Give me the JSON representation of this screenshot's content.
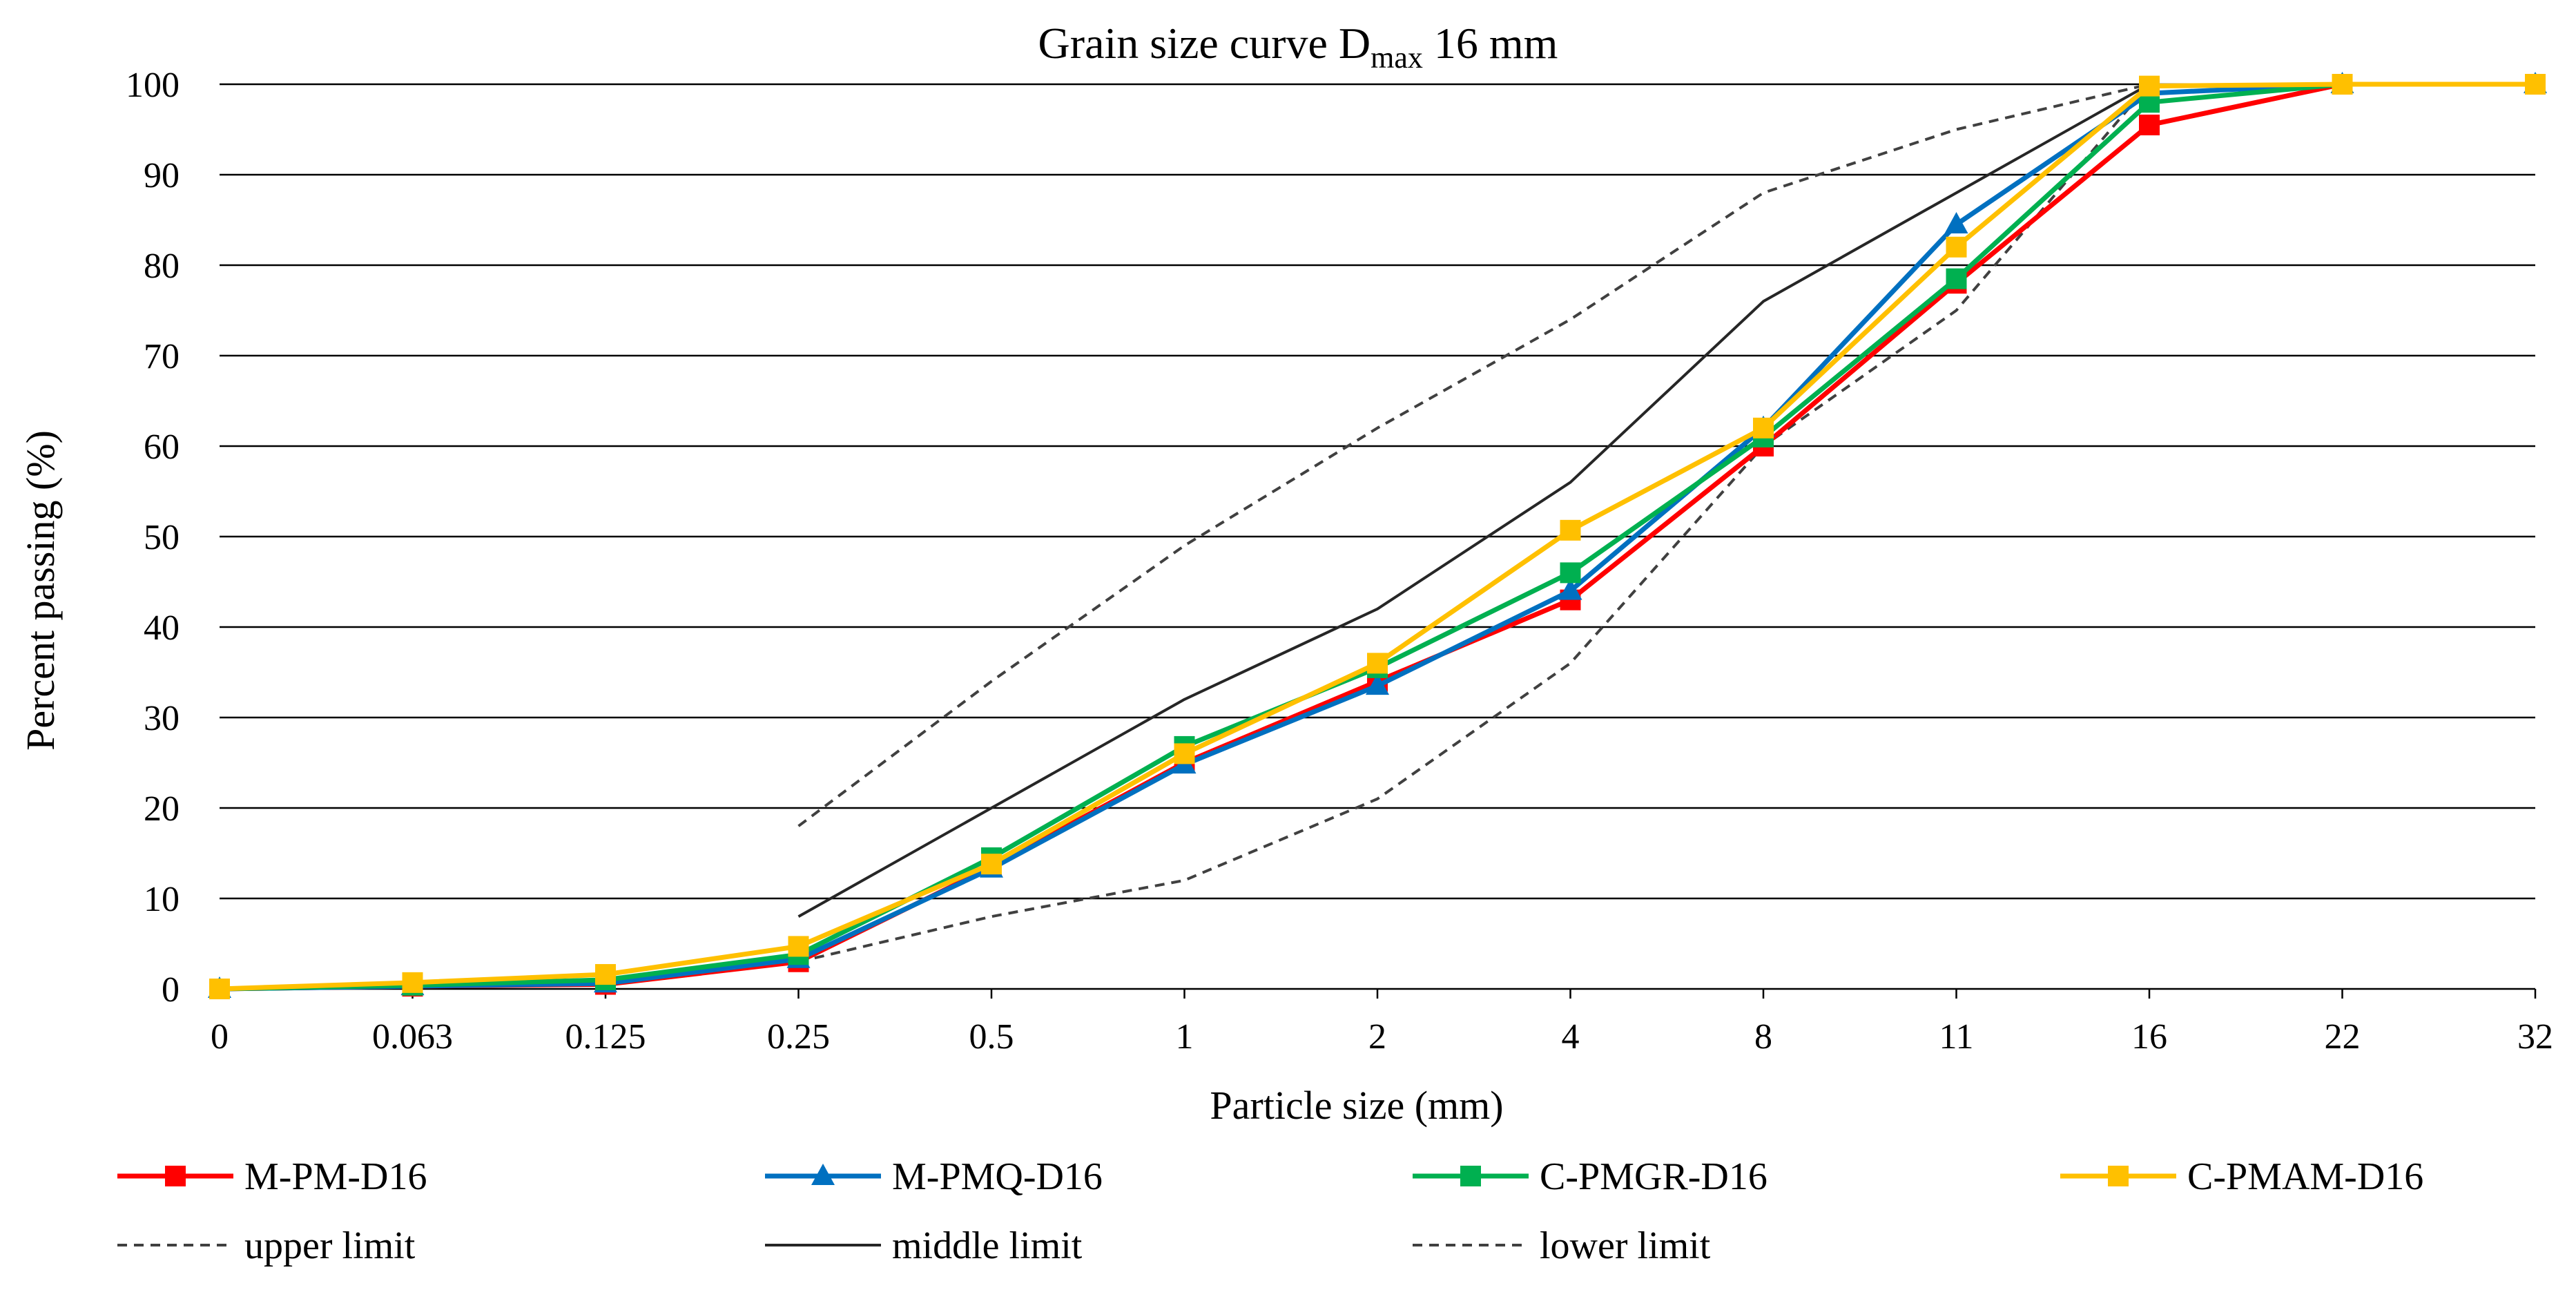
{
  "chart_data": {
    "type": "line",
    "title": "Grain size curve D",
    "title_subscript": "max",
    "title_suffix": " 16 mm",
    "xlabel": "Particle size (mm)",
    "ylabel": "Percent passing (%)",
    "categories": [
      "0",
      "0.063",
      "0.125",
      "0.25",
      "0.5",
      "1",
      "2",
      "4",
      "8",
      "11",
      "16",
      "22",
      "32"
    ],
    "ylim": [
      0,
      100
    ],
    "yticks": [
      0,
      10,
      20,
      30,
      40,
      50,
      60,
      70,
      80,
      90,
      100
    ],
    "grid": true,
    "legend_position": "bottom",
    "series": [
      {
        "name": "M-PM-D16",
        "color": "#ff0000",
        "marker": "square",
        "dash": "solid",
        "values": [
          0,
          0.3,
          0.5,
          3.0,
          13.5,
          25.0,
          34.0,
          43.0,
          60.0,
          78.0,
          95.5,
          100,
          100
        ]
      },
      {
        "name": "M-PMQ-D16",
        "color": "#0070c0",
        "marker": "triangle",
        "dash": "solid",
        "values": [
          0,
          0.3,
          0.6,
          3.3,
          13.3,
          24.8,
          33.5,
          44.0,
          62.0,
          84.5,
          99.0,
          100,
          100
        ]
      },
      {
        "name": "C-PMGR-D16",
        "color": "#00b050",
        "marker": "square",
        "dash": "solid",
        "values": [
          0,
          0.4,
          1.0,
          3.8,
          14.5,
          26.8,
          35.5,
          46.0,
          61.0,
          78.5,
          98.0,
          100,
          100
        ]
      },
      {
        "name": "C-PMAM-D16",
        "color": "#ffc000",
        "marker": "square",
        "dash": "solid",
        "values": [
          0,
          0.7,
          1.6,
          4.7,
          13.8,
          26.0,
          36.0,
          50.7,
          62.0,
          82.0,
          99.8,
          100,
          100
        ]
      },
      {
        "name": "upper limit",
        "color": "#404040",
        "marker": "none",
        "dash": "dashed",
        "values": [
          null,
          null,
          null,
          18,
          34,
          49,
          62,
          74,
          88,
          95,
          100,
          null,
          null
        ]
      },
      {
        "name": "middle limit",
        "color": "#262626",
        "marker": "none",
        "dash": "solid",
        "values": [
          null,
          null,
          null,
          8,
          20,
          32,
          42,
          56,
          76,
          88,
          100,
          null,
          null
        ]
      },
      {
        "name": "lower limit",
        "color": "#404040",
        "marker": "none",
        "dash": "dashed",
        "values": [
          null,
          null,
          null,
          3,
          8,
          12,
          21,
          36,
          60,
          75,
          100,
          null,
          null
        ]
      }
    ]
  }
}
